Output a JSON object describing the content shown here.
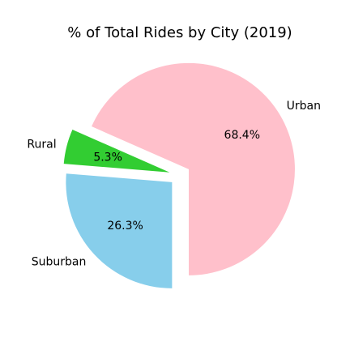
{
  "chart_data": {
    "type": "pie",
    "title": "% of Total Rides by City (2019)",
    "slices": [
      {
        "label": "Urban",
        "value": 68.4,
        "pct_text": "68.4%",
        "color": "#ffc0cb",
        "exploded": true
      },
      {
        "label": "Rural",
        "value": 5.3,
        "pct_text": "5.3%",
        "color": "#32cd32",
        "exploded": true
      },
      {
        "label": "Suburban",
        "value": 26.3,
        "pct_text": "26.3%",
        "color": "#87ceeb",
        "exploded": true
      }
    ],
    "legend": "none",
    "start_angle_deg": 270
  }
}
